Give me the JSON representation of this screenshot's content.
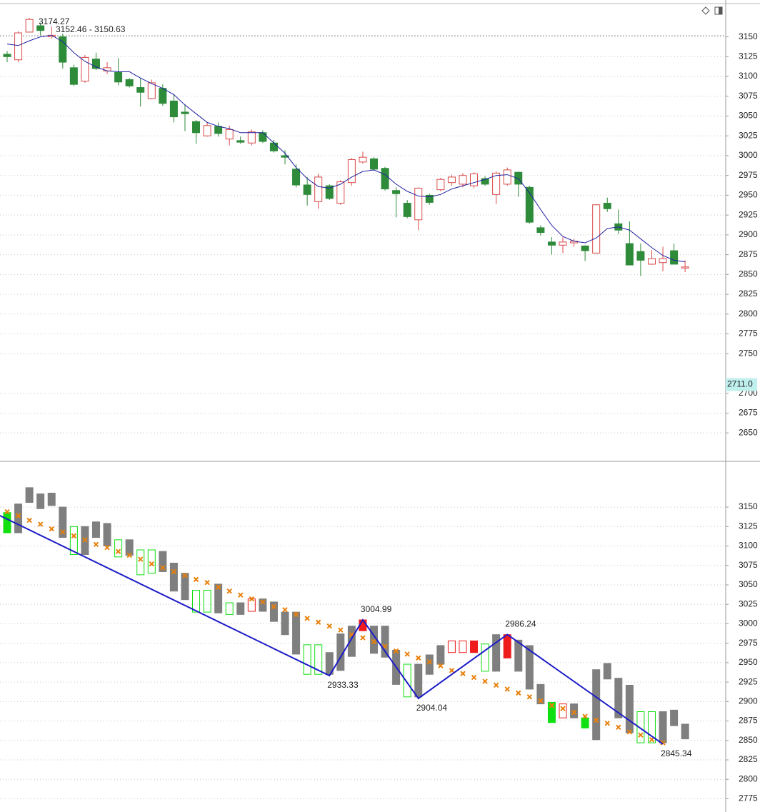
{
  "chart_data": [
    {
      "type": "candlestick",
      "open": [
        3128,
        3121,
        3156,
        3164,
        3150,
        3150,
        3111,
        3094,
        3122,
        3107,
        3105,
        3096,
        3086,
        3072,
        3085,
        3069,
        3055,
        3043,
        3025,
        3037,
        3021,
        3019,
        3016,
        3029,
        3016,
        3000,
        2983,
        2963,
        2942,
        2962,
        2940,
        2966,
        2992,
        2996,
        2984,
        2956,
        2940,
        2919,
        2950,
        2957,
        2966,
        2964,
        2962,
        2971,
        2951,
        2964,
        2979,
        2960,
        2909,
        2891,
        2887,
        2890,
        2886,
        2877,
        2940,
        2914,
        2889,
        2879,
        2863,
        2865,
        2880,
        2859
      ],
      "high": [
        3132,
        3157,
        3174,
        3168,
        3163,
        3154,
        3115,
        3127,
        3130,
        3118,
        3123,
        3098,
        3098,
        3096,
        3090,
        3078,
        3065,
        3045,
        3042,
        3042,
        3038,
        3024,
        3033,
        3032,
        3020,
        3007,
        2989,
        2973,
        2977,
        2964,
        2969,
        2997,
        3005,
        2998,
        2986,
        2960,
        2944,
        2960,
        2952,
        2972,
        2976,
        2978,
        2979,
        2974,
        2980,
        2985,
        2980,
        2962,
        2912,
        2897,
        2897,
        2895,
        2887,
        2939,
        2947,
        2932,
        2917,
        2889,
        2881,
        2885,
        2889,
        2868
      ],
      "low": [
        3118,
        3118,
        3156,
        3152,
        3148,
        3110,
        3088,
        3092,
        3108,
        3103,
        3089,
        3086,
        3062,
        3071,
        3063,
        3042,
        3031,
        3015,
        3024,
        3024,
        3013,
        3015,
        3013,
        3016,
        3004,
        2989,
        2960,
        2937,
        2933,
        2944,
        2938,
        2962,
        2990,
        2981,
        2956,
        2922,
        2921,
        2906,
        2938,
        2955,
        2962,
        2960,
        2959,
        2962,
        2939,
        2962,
        2948,
        2914,
        2899,
        2875,
        2877,
        2885,
        2867,
        2876,
        2929,
        2901,
        2862,
        2848,
        2862,
        2854,
        2863,
        2853
      ],
      "close": [
        3125,
        3155,
        3172,
        3158,
        3152,
        3118,
        3090,
        3124,
        3110,
        3111,
        3093,
        3088,
        3080,
        3092,
        3066,
        3049,
        3053,
        3029,
        3038,
        3028,
        3033,
        3017,
        3030,
        3018,
        3006,
        2998,
        2963,
        2951,
        2973,
        2946,
        2967,
        2995,
        2998,
        2983,
        2958,
        2952,
        2923,
        2959,
        2941,
        2970,
        2973,
        2975,
        2977,
        2964,
        2978,
        2982,
        2964,
        2916,
        2903,
        2887,
        2891,
        2892,
        2880,
        2938,
        2933,
        2906,
        2862,
        2868,
        2870,
        2870,
        2863,
        2859.5
      ],
      "up_color": "#d84a4a",
      "down_color": "#2e8b3a",
      "ma": {
        "color": "#2020a0",
        "values": [
          3141,
          3139,
          3145,
          3150,
          3152,
          3144,
          3130,
          3119,
          3112,
          3107,
          3106,
          3106,
          3098,
          3091,
          3085,
          3077,
          3064,
          3053,
          3042,
          3037,
          3034,
          3029,
          3029,
          3029,
          3016,
          3003,
          2985,
          2971,
          2961,
          2959,
          2964,
          2973,
          2980,
          2982,
          2976,
          2964,
          2955,
          2949,
          2948,
          2951,
          2958,
          2962,
          2966,
          2970,
          2975,
          2976,
          2971,
          2953,
          2932,
          2912,
          2898,
          2892,
          2890,
          2896,
          2908,
          2910,
          2906,
          2895,
          2884,
          2874,
          2868,
          2866
        ]
      },
      "annotations": [
        "3174.27",
        "3152.46 - 3150.63"
      ],
      "price_tag": {
        "value": 2711,
        "label": "2711.0"
      },
      "ylim": [
        2615,
        3192
      ],
      "yticks": [
        3150,
        3125,
        3100,
        3075,
        3050,
        3025,
        3000,
        2975,
        2950,
        2925,
        2900,
        2875,
        2850,
        2825,
        2800,
        2775,
        2750,
        2700,
        2675,
        2650
      ],
      "grid": true
    },
    {
      "type": "range-bar",
      "high": [
        3143,
        3154,
        3175,
        3167,
        3168,
        3150,
        3125,
        3125,
        3131,
        3129,
        3108,
        3108,
        3095,
        3095,
        3093,
        3078,
        3065,
        3043,
        3043,
        3051,
        3027,
        3027,
        3032,
        3032,
        3028,
        3015,
        3015,
        2973,
        2973,
        2963,
        2987,
        2997,
        3005,
        2997,
        2997,
        2966,
        2948,
        2948,
        2960,
        2972,
        2978,
        2978,
        2978,
        2974,
        2986,
        2986,
        2979,
        2972,
        2922,
        2899,
        2897,
        2897,
        2879,
        2941,
        2949,
        2930,
        2921,
        2887,
        2887,
        2887,
        2889,
        2871
      ],
      "low": [
        3117,
        3117,
        3156,
        3148,
        3152,
        3111,
        3089,
        3089,
        3111,
        3100,
        3086,
        3088,
        3063,
        3065,
        3067,
        3042,
        3031,
        3015,
        3015,
        3014,
        3012,
        3012,
        3016,
        3016,
        3003,
        2986,
        2961,
        2935,
        2935,
        2935,
        2940,
        2958,
        2991,
        2962,
        2957,
        2922,
        2906,
        2906,
        2935,
        2948,
        2963,
        2963,
        2963,
        2939,
        2939,
        2956,
        2939,
        2916,
        2897,
        2873,
        2879,
        2879,
        2866,
        2851,
        2929,
        2879,
        2860,
        2847,
        2847,
        2847,
        2869,
        2852
      ],
      "styles": [
        "green",
        "gray",
        "gray",
        "gray",
        "gray",
        "gray",
        "green-hollow",
        "gray",
        "gray",
        "gray",
        "green-hollow",
        "gray",
        "green-hollow",
        "green-hollow",
        "gray",
        "gray",
        "gray",
        "green-hollow",
        "green-hollow",
        "gray",
        "green-hollow",
        "gray",
        "red-hollow",
        "gray",
        "gray",
        "gray",
        "gray",
        "green-hollow",
        "green-hollow",
        "gray",
        "gray",
        "gray",
        "red",
        "gray",
        "gray",
        "gray",
        "green-hollow",
        "gray",
        "gray",
        "gray",
        "red-hollow",
        "red-hollow",
        "red",
        "green-hollow",
        "gray",
        "red",
        "gray",
        "gray",
        "gray",
        "green",
        "red-hollow",
        "gray",
        "green",
        "gray",
        "gray",
        "gray",
        "gray",
        "green-hollow",
        "green-hollow",
        "gray",
        "gray",
        "gray"
      ],
      "colors": {
        "gray": "#7f7f7f",
        "green": "#10e010",
        "red": "#ee1c1c"
      },
      "markers": {
        "color": "#e8800a",
        "values": [
          3144,
          3139,
          3133,
          3128,
          3122,
          3118,
          3113,
          3108,
          3102,
          3098,
          3093,
          3088,
          3083,
          3077,
          3072,
          3067,
          3062,
          3057,
          3053,
          3047,
          3042,
          3037,
          3032,
          3028,
          3022,
          3018,
          3012,
          3007,
          3002,
          2997,
          2992,
          2986,
          2982,
          2977,
          2971,
          2965,
          2961,
          2956,
          2951,
          2946,
          2940,
          2936,
          2931,
          2926,
          2921,
          2916,
          2911,
          2906,
          2901,
          2895,
          2891,
          2886,
          2881,
          2876,
          2872,
          2867,
          2861,
          2857,
          2851,
          2847,
          null,
          null
        ]
      },
      "zigzag": {
        "color": "#1c1cc8",
        "x": [
          0,
          29,
          32,
          37,
          45,
          59
        ],
        "values": [
          3139,
          2933.33,
          3004.99,
          2904.04,
          2986.24,
          2845.34
        ]
      },
      "ylim": [
        2758,
        3207
      ],
      "yticks": [
        3150,
        3125,
        3100,
        3075,
        3050,
        3025,
        3000,
        2975,
        2950,
        2925,
        2900,
        2875,
        2850,
        2825,
        2800,
        2775
      ],
      "grid": true
    }
  ]
}
